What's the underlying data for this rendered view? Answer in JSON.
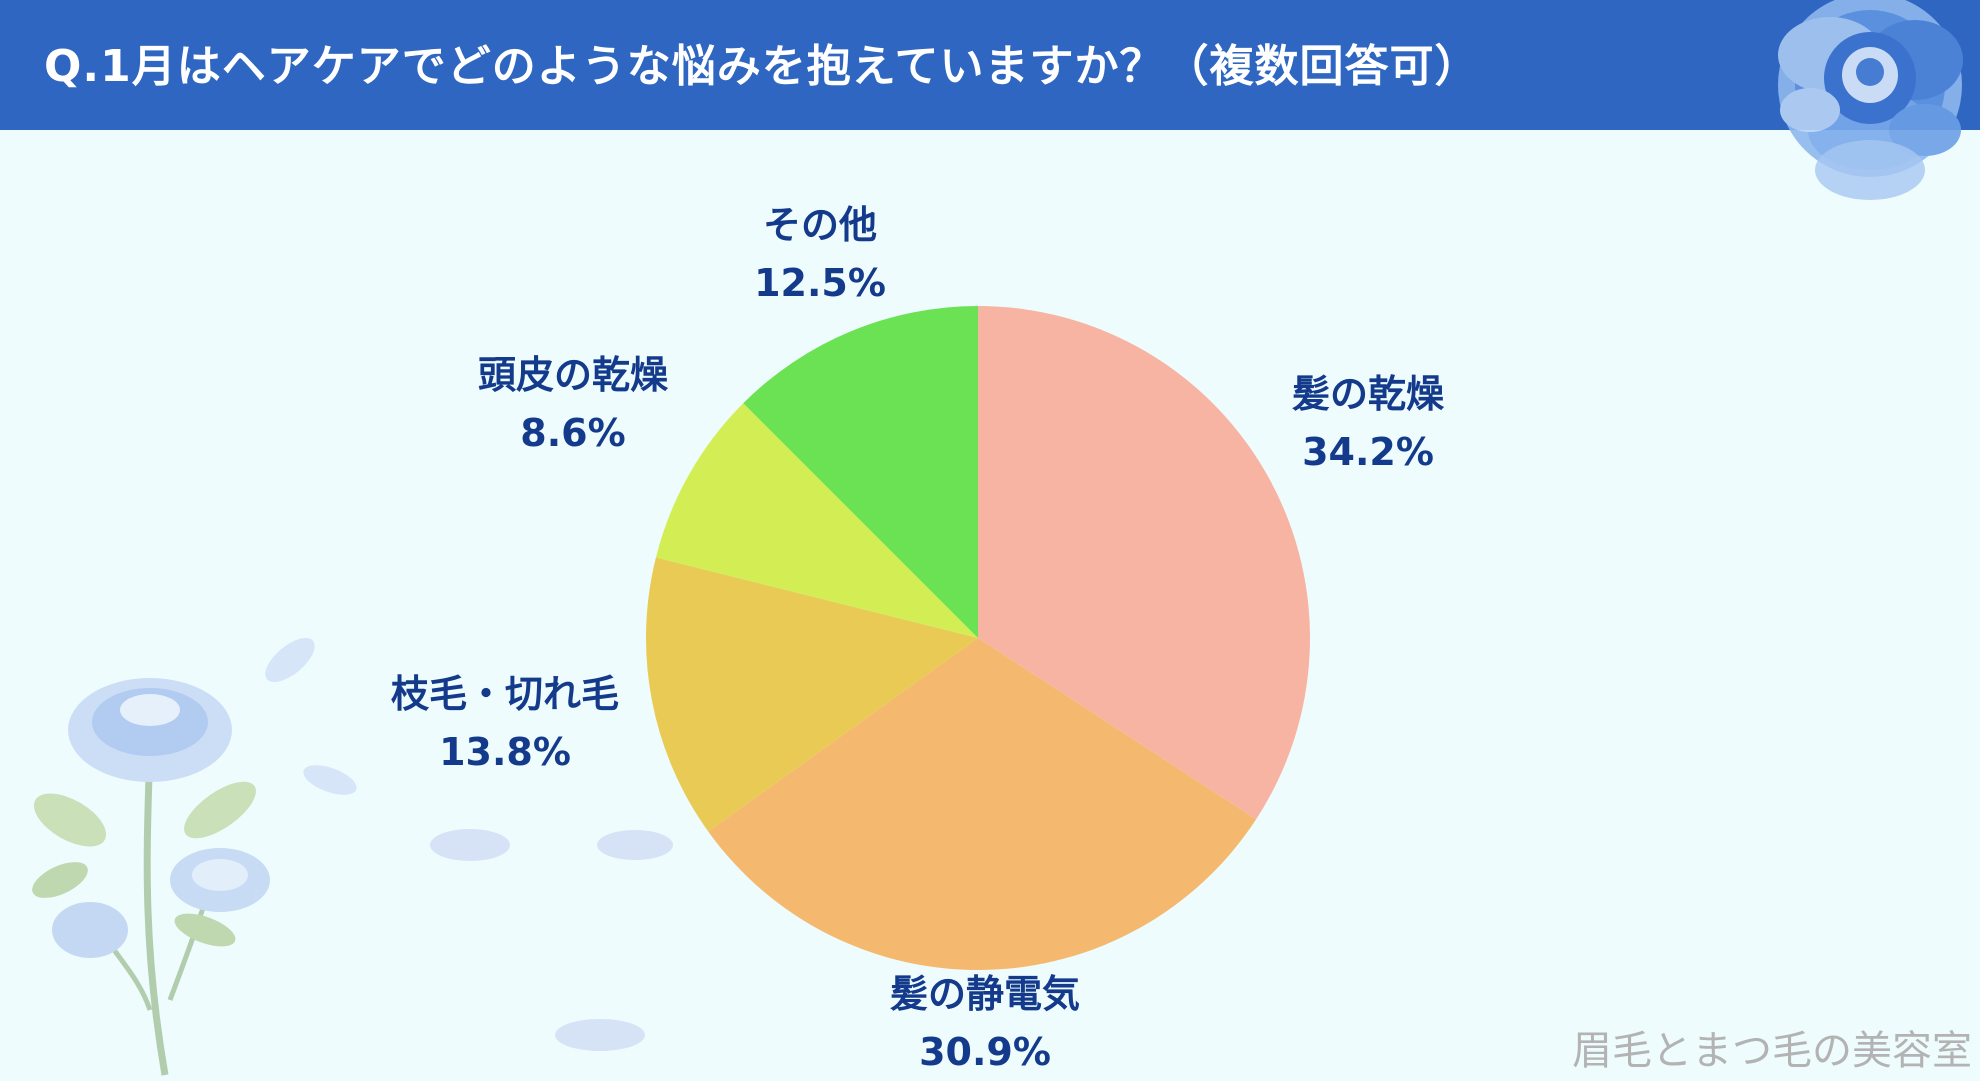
{
  "title": "Q.1月はヘアケアでどのような悩みを抱えていますか？（複数回答可）",
  "watermark": "眉毛とまつ毛の美容室",
  "chart_data": {
    "type": "pie",
    "title": "Q.1月はヘアケアでどのような悩みを抱えていますか？（複数回答可）",
    "start": "12 o'clock",
    "direction": "clockwise",
    "slices": [
      {
        "label": "髪の乾燥",
        "value": 34.2,
        "display": "34.2%",
        "color": "#f8b4a3"
      },
      {
        "label": "髪の静電気",
        "value": 30.9,
        "display": "30.9%",
        "color": "#f5b86f"
      },
      {
        "label": "枝毛・切れ毛",
        "value": 13.8,
        "display": "13.8%",
        "color": "#e8ca55"
      },
      {
        "label": "頭皮の乾燥",
        "value": 8.6,
        "display": "8.6%",
        "color": "#d3ee55"
      },
      {
        "label": "その他",
        "value": 12.5,
        "display": "12.5%",
        "color": "#6be254"
      }
    ]
  },
  "colors": {
    "header": "#2e66c1",
    "background": "#eefcfd",
    "label": "#143a8c"
  }
}
